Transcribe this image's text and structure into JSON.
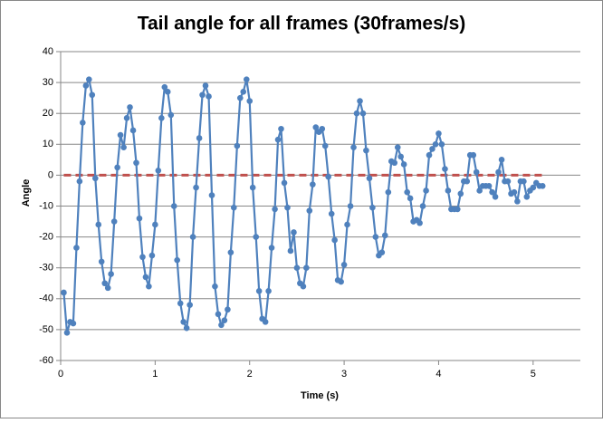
{
  "chart_data": {
    "type": "line",
    "title": "Tail angle for all frames (30frames/s)",
    "x_label": "Time (s)",
    "y_label": "Angle",
    "x": [
      0.033,
      0.067,
      0.1,
      0.133,
      0.167,
      0.2,
      0.233,
      0.267,
      0.3,
      0.333,
      0.367,
      0.4,
      0.433,
      0.467,
      0.5,
      0.533,
      0.567,
      0.6,
      0.633,
      0.667,
      0.7,
      0.733,
      0.767,
      0.8,
      0.833,
      0.867,
      0.9,
      0.933,
      0.967,
      1.0,
      1.033,
      1.067,
      1.1,
      1.133,
      1.167,
      1.2,
      1.233,
      1.267,
      1.3,
      1.333,
      1.367,
      1.4,
      1.433,
      1.467,
      1.5,
      1.533,
      1.567,
      1.6,
      1.633,
      1.667,
      1.7,
      1.733,
      1.767,
      1.8,
      1.833,
      1.867,
      1.9,
      1.933,
      1.967,
      2.0,
      2.033,
      2.067,
      2.1,
      2.133,
      2.167,
      2.2,
      2.233,
      2.267,
      2.3,
      2.333,
      2.367,
      2.4,
      2.433,
      2.467,
      2.5,
      2.533,
      2.567,
      2.6,
      2.633,
      2.667,
      2.7,
      2.733,
      2.767,
      2.8,
      2.833,
      2.867,
      2.9,
      2.933,
      2.967,
      3.0,
      3.033,
      3.067,
      3.1,
      3.133,
      3.167,
      3.2,
      3.233,
      3.267,
      3.3,
      3.333,
      3.367,
      3.4,
      3.433,
      3.467,
      3.5,
      3.533,
      3.567,
      3.6,
      3.633,
      3.667,
      3.7,
      3.733,
      3.767,
      3.8,
      3.833,
      3.867,
      3.9,
      3.933,
      3.967,
      4.0,
      4.033,
      4.067,
      4.1,
      4.133,
      4.167,
      4.2,
      4.233,
      4.267,
      4.3,
      4.333,
      4.367,
      4.4,
      4.433,
      4.467,
      4.5,
      4.533,
      4.567,
      4.6,
      4.633,
      4.667,
      4.7,
      4.733,
      4.767,
      4.8,
      4.833,
      4.867,
      4.9,
      4.933,
      4.967,
      5.0,
      5.033,
      5.067,
      5.1
    ],
    "series": [
      {
        "color": "#4f81bd",
        "values": [
          -38,
          -51,
          -47.5,
          -48,
          -23.5,
          -2,
          17,
          29,
          31,
          26,
          -1,
          -16,
          -28,
          -35,
          -36.5,
          -32,
          -15,
          2.5,
          13,
          9,
          18.5,
          22,
          14.5,
          4,
          -14,
          -26.5,
          -33,
          -36,
          -26,
          -16,
          1.5,
          18.5,
          28.5,
          27,
          19.5,
          -10,
          -27.5,
          -41.5,
          -47.5,
          -49.5,
          -42,
          -20,
          -4,
          12,
          26,
          29,
          25.5,
          -6.5,
          -36,
          -45,
          -48.5,
          -47,
          -43.5,
          -25,
          -10.5,
          9.5,
          25,
          27,
          31,
          24,
          -4,
          -20,
          -37.5,
          -46.5,
          -47.5,
          -37.5,
          -23.5,
          -11,
          11.5,
          15,
          -2.5,
          -10.5,
          -24.5,
          -18.5,
          -30,
          -35,
          -36,
          -30,
          -11.5,
          -3,
          15.5,
          14,
          15,
          9.5,
          -0.5,
          -12.5,
          -21,
          -34,
          -34.5,
          -29,
          -16,
          -10,
          9,
          20,
          24,
          20,
          8,
          -1,
          -10.5,
          -20,
          -26,
          -25,
          -19.5,
          -5.5,
          4.5,
          4,
          9,
          6,
          3.5,
          -5.5,
          -7.5,
          -15,
          -14.5,
          -15.5,
          -10,
          -5,
          6.5,
          8.5,
          10,
          13.5,
          10,
          2,
          -5,
          -11,
          -11,
          -11,
          -6,
          -2,
          -2,
          6.5,
          6.5,
          1,
          -5,
          -3.5,
          -3.5,
          -3.5,
          -5.5,
          -7,
          1,
          5,
          -2,
          -2,
          -6,
          -5.5,
          -8.5,
          -2,
          -2,
          -7,
          -5,
          -4,
          -2.5,
          -3.5,
          -3.5
        ]
      }
    ],
    "hline": {
      "y": 0,
      "color": "#c0504d",
      "dashed": true
    },
    "xlim": [
      0,
      5.5
    ],
    "xticks": [
      0,
      1,
      2,
      3,
      4,
      5
    ],
    "ylim": [
      -60,
      40
    ],
    "yticks": [
      -60,
      -50,
      -40,
      -30,
      -20,
      -10,
      0,
      10,
      20,
      30,
      40
    ],
    "grid": true
  }
}
